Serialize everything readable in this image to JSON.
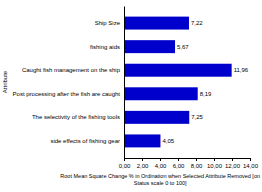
{
  "chart_data": {
    "type": "bar",
    "orientation": "horizontal",
    "categories": [
      "side effects of fishing gear",
      "The selectivity of the fishing tools",
      "Post processing after the fish are caught",
      "Caught fish management on the ship",
      "fishing aids",
      "Ship Size"
    ],
    "values": [
      4.05,
      7.25,
      8.19,
      11.96,
      5.67,
      7.22
    ],
    "value_labels": [
      "4,05",
      "7,25",
      "8,19",
      "11,96",
      "5,67",
      "7,22"
    ],
    "data_labels": true,
    "color": "#0000cc",
    "xlabel": "Root Mean Square Change % in Ordination when Selected Attribute Removed [on\nStatus scale 0 to 100]",
    "ylabel": "Attribute",
    "xlim": [
      0,
      14
    ],
    "xticks": [
      {
        "value": 0,
        "label": "0,00"
      },
      {
        "value": 2,
        "label": "2,00"
      },
      {
        "value": 4,
        "label": "4,00"
      },
      {
        "value": 6,
        "label": "6,00"
      },
      {
        "value": 8,
        "label": "8,00"
      },
      {
        "value": 10,
        "label": "10,00"
      },
      {
        "value": 12,
        "label": "12,00"
      },
      {
        "value": 14,
        "label": "14,00"
      }
    ],
    "grid": false
  }
}
